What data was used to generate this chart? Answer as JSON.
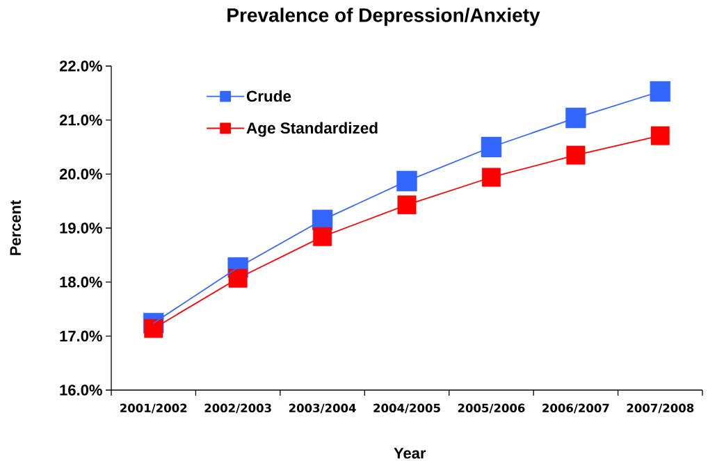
{
  "chart_data": {
    "type": "line",
    "title": "Prevalence of Depression/Anxiety",
    "xlabel": "Year",
    "ylabel": "Percent",
    "categories": [
      "2001/2002",
      "2002/2003",
      "2003/2004",
      "2004/2005",
      "2005/2006",
      "2006/2007",
      "2007/2008"
    ],
    "series": [
      {
        "name": "Crude",
        "color": "#3366ff",
        "values": [
          17.24,
          18.27,
          19.15,
          19.87,
          20.5,
          21.04,
          21.53
        ]
      },
      {
        "name": "Age Standardized",
        "color": "#ff0000",
        "values": [
          17.14,
          18.07,
          18.84,
          19.43,
          19.94,
          20.35,
          20.71
        ]
      }
    ],
    "ylim": [
      16,
      22
    ],
    "yticks": [
      {
        "value": 16,
        "label": "16.0%"
      },
      {
        "value": 17,
        "label": "17.0%"
      },
      {
        "value": 18,
        "label": "18.0%"
      },
      {
        "value": 19,
        "label": "19.0%"
      },
      {
        "value": 20,
        "label": "20.0%"
      },
      {
        "value": 21,
        "label": "21.0%"
      },
      {
        "value": 22,
        "label": "22.0%"
      }
    ],
    "legend": "top left",
    "marker": "square",
    "line_style": "solid"
  }
}
